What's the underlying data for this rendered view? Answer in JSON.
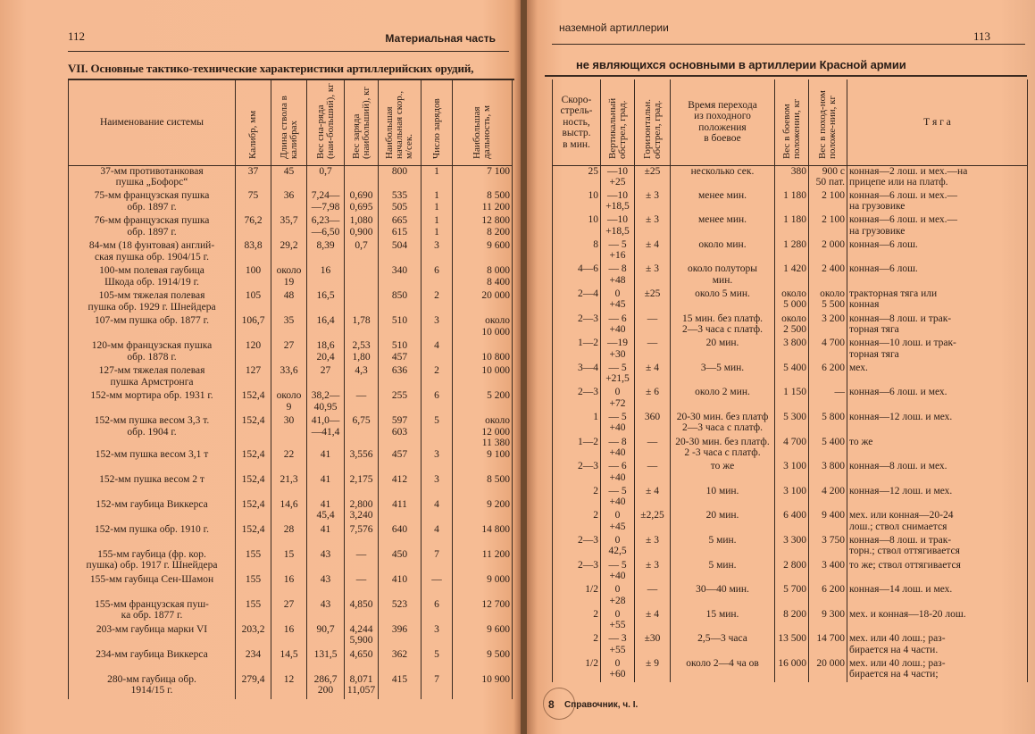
{
  "left_page": {
    "page_number": "112",
    "running_head": "Материальная часть",
    "title": "VII. Основные тактико-технические характеристики артиллерийских орудий,",
    "columns": [
      "Наименование системы",
      "Калибр, мм",
      "Длина ствола в калибрах",
      "Вес сна-ряда (наи-больший), кг",
      "Вес заряда (наибольший), кг",
      "Наибольшая начальная скор., м/сек.",
      "Число зарядов",
      "Наибольшая дальность, м"
    ],
    "rows": [
      [
        "37-мм противотанковая\nпушка „Бофорс“",
        "37",
        "45",
        "0,7",
        "",
        "800",
        "1",
        "7 100"
      ],
      [
        "75-мм французская пушка\nобр. 1897 г.",
        "75",
        "36",
        "7,24—\n—7,98",
        "0,690\n0,695",
        "535\n505",
        "1\n1",
        "8 500\n11 200"
      ],
      [
        "76-мм французская пушка\nобр. 1897 г.",
        "76,2",
        "35,7",
        "6,23—\n—6,50",
        "1,080\n0,900",
        "665\n615",
        "1\n1",
        "12 800\n8 200"
      ],
      [
        "84-мм (18 фунтовая) англий-\nская пушка обр. 1904/15 г.",
        "83,8",
        "29,2",
        "8,39",
        "0,7",
        "504",
        "3",
        "9 600"
      ],
      [
        "100-мм полевая гаубица\nШкода обр. 1914/19 г.",
        "100",
        "около\n19",
        "16",
        "",
        "340",
        "6",
        "8 000\n8 400"
      ],
      [
        "105-мм тяжелая полевая\nпушка обр. 1929 г. Шнейдера",
        "105",
        "48",
        "16,5",
        "",
        "850",
        "2",
        "20 000"
      ],
      [
        "107-мм пушка обр. 1877 г.",
        "106,7",
        "35",
        "16,4",
        "1,78",
        "510",
        "3",
        "около\n10 000"
      ],
      [
        "120-мм французская пушка\nобр. 1878 г.",
        "120",
        "27",
        "18,6\n20,4",
        "2,53\n1,80",
        "510\n457",
        "4",
        "\n10 800"
      ],
      [
        "127-мм тяжелая полевая\nпушка Армстронга",
        "127",
        "33,6",
        "27",
        "4,3",
        "636",
        "2",
        "10 000"
      ],
      [
        "152-мм мортира обр. 1931 г.",
        "152,4",
        "около\n9",
        "38,2—\n40,95",
        "—",
        "255",
        "6",
        "5 200"
      ],
      [
        "152-мм пушка весом 3,3 т.\nобр. 1904 г.",
        "152,4",
        "30",
        "41,0—\n—41,4",
        "6,75",
        "597\n603",
        "5",
        "около\n12 000\n11 380"
      ],
      [
        "152-мм пушка весом 3,1 т",
        "152,4",
        "22",
        "41",
        "3,556",
        "457",
        "3",
        "9 100"
      ],
      [
        "152-мм пушка весом 2 т",
        "152,4",
        "21,3",
        "41",
        "2,175",
        "412",
        "3",
        "8 500"
      ],
      [
        "152-мм гаубица Виккерса",
        "152,4",
        "14,6",
        "41\n45,4",
        "2,800\n3,240",
        "411",
        "4",
        "9 200"
      ],
      [
        "152-мм пушка обр. 1910 г.",
        "152,4",
        "28",
        "41",
        "7,576",
        "640",
        "4",
        "14 800"
      ],
      [
        "155-мм гаубица (фр. кор.\nпушка) обр. 1917 г. Шнейдера",
        "155",
        "15",
        "43",
        "—",
        "450",
        "7",
        "11 200"
      ],
      [
        "155-мм гаубица Сен-Шамон",
        "155",
        "16",
        "43",
        "—",
        "410",
        "—",
        "9 000"
      ],
      [
        "155-мм французская пуш-\nка обр. 1877 г.",
        "155",
        "27",
        "43",
        "4,850",
        "523",
        "6",
        "12 700"
      ],
      [
        "203-мм гаубица марки VI",
        "203,2",
        "16",
        "90,7",
        "4,244\n5,900",
        "396",
        "3",
        "9 600"
      ],
      [
        "234-мм гаубица Виккерса",
        "234",
        "14,5",
        "131,5",
        "4,650",
        "362",
        "5",
        "9 500"
      ],
      [
        "280-мм гаубица обр.\n1914/15 г.",
        "279,4",
        "12",
        "286,7\n200",
        "8,071\n11,057",
        "415",
        "7",
        "10 900"
      ]
    ]
  },
  "right_page": {
    "page_number": "113",
    "running_head": "наземной артиллерии",
    "title": "не являющихся основными в артиллерии Красной армии",
    "columns": [
      "Скоро-\nстрель-\nность,\nвыстр.\nв мин.",
      "Вертикальный обстрел, град.",
      "Горизонтальн. обстрел, град.",
      "Время перехода\nиз походного\nположения\nв боевое",
      "Вес в боевом положении, кг",
      "Вес в поход-ном положе-нии, кг",
      "Т я г а"
    ],
    "rows": [
      [
        "25",
        "—10\n+25",
        "±25",
        "несколько сек.",
        "380",
        "900 с\n50 пат.",
        "конная—2 лош. и мех.—на\nприцепе или на платф."
      ],
      [
        "10",
        "—10\n+18,5",
        "± 3",
        "менее мин.",
        "1 180",
        "2 100",
        "конная—6 лош. и мех.—\nна грузовике"
      ],
      [
        "10",
        "—10\n+18,5",
        "± 3",
        "менее мин.",
        "1 180",
        "2 100",
        "конная—6 лош. и мех.—\nна грузовике"
      ],
      [
        "8",
        "— 5\n+16",
        "± 4",
        "около мин.",
        "1 280",
        "2 000",
        "конная—6 лош."
      ],
      [
        "4—6",
        "— 8\n+48",
        "± 3",
        "около полуторы\nмин.",
        "1 420",
        "2 400",
        "конная—6 лош."
      ],
      [
        "2—4",
        "0\n+45",
        "±25",
        "около 5 мин.",
        "около\n5 000",
        "около\n5 500",
        "тракторная тяга или\nконная"
      ],
      [
        "2—3",
        "— 6\n+40",
        "—",
        "15 мин. без платф.\n2—3 часа с платф.",
        "около\n2 500",
        "3 200",
        "конная—8 лош. и трак-\nторная тяга"
      ],
      [
        "1—2",
        "—19\n+30",
        "—",
        "20 мин.",
        "3 800",
        "4 700",
        "конная—10 лош. и трак-\nторная тяга"
      ],
      [
        "3—4",
        "— 5\n+21,5",
        "± 4",
        "3—5 мин.",
        "5 400",
        "6 200",
        "мех."
      ],
      [
        "2—3",
        "0\n+72",
        "± 6",
        "около 2 мин.",
        "1 150",
        "—",
        "конная—6 лош. и мех."
      ],
      [
        "1",
        "— 5\n+40",
        "360",
        "20-30 мин. без платф\n2—3 часа с платф.",
        "5 300",
        "5 800",
        "конная—12 лош. и мех."
      ],
      [
        "1—2",
        "— 8\n+40",
        "—",
        "20-30 мин. без платф.\n2 -3 часа с платф.",
        "4 700",
        "5 400",
        "то же"
      ],
      [
        "2—3",
        "— 6\n+40",
        "—",
        "то же",
        "3 100",
        "3 800",
        "конная—8 лош. и мех."
      ],
      [
        "2",
        "— 5\n+40",
        "± 4",
        "10 мин.",
        "3 100",
        "4 200",
        "конная—12 лош. и мех."
      ],
      [
        "2",
        "0\n+45",
        "±2,25",
        "20 мин.",
        "6 400",
        "9 400",
        "мех. или конная—20-24\nлош.; ствол снимается"
      ],
      [
        "2—3",
        "0\n42,5",
        "± 3",
        "5 мин.",
        "3 300",
        "3 750",
        "конная—8 лош. и трак-\nторн.; ствол оттягивается"
      ],
      [
        "2—3",
        "— 5\n+40",
        "± 3",
        "5 мин.",
        "2 800",
        "3 400",
        "то же; ствол оттягивается"
      ],
      [
        "1/2",
        "0\n+28",
        "—",
        "30—40 мин.",
        "5 700",
        "6 200",
        "конная—14 лош. и мех."
      ],
      [
        "2",
        "0\n+55",
        "± 4",
        "15 мин.",
        "8 200",
        "9 300",
        "мех. и конная—18-20 лош."
      ],
      [
        "2",
        "— 3\n+55",
        "±30",
        "2,5—3 часа",
        "13 500",
        "14 700",
        "мех. или 40 лош.; раз-\nбирается на 4 части."
      ],
      [
        "1/2",
        "0\n+60",
        "± 9",
        "около 2—4 ча ов",
        "16 000",
        "20 000",
        "мех. или 40 лош.; раз-\nбирается на 4 части;"
      ]
    ],
    "footer": {
      "sheet_number": "8",
      "signature": "Справочник, ч. I."
    }
  }
}
